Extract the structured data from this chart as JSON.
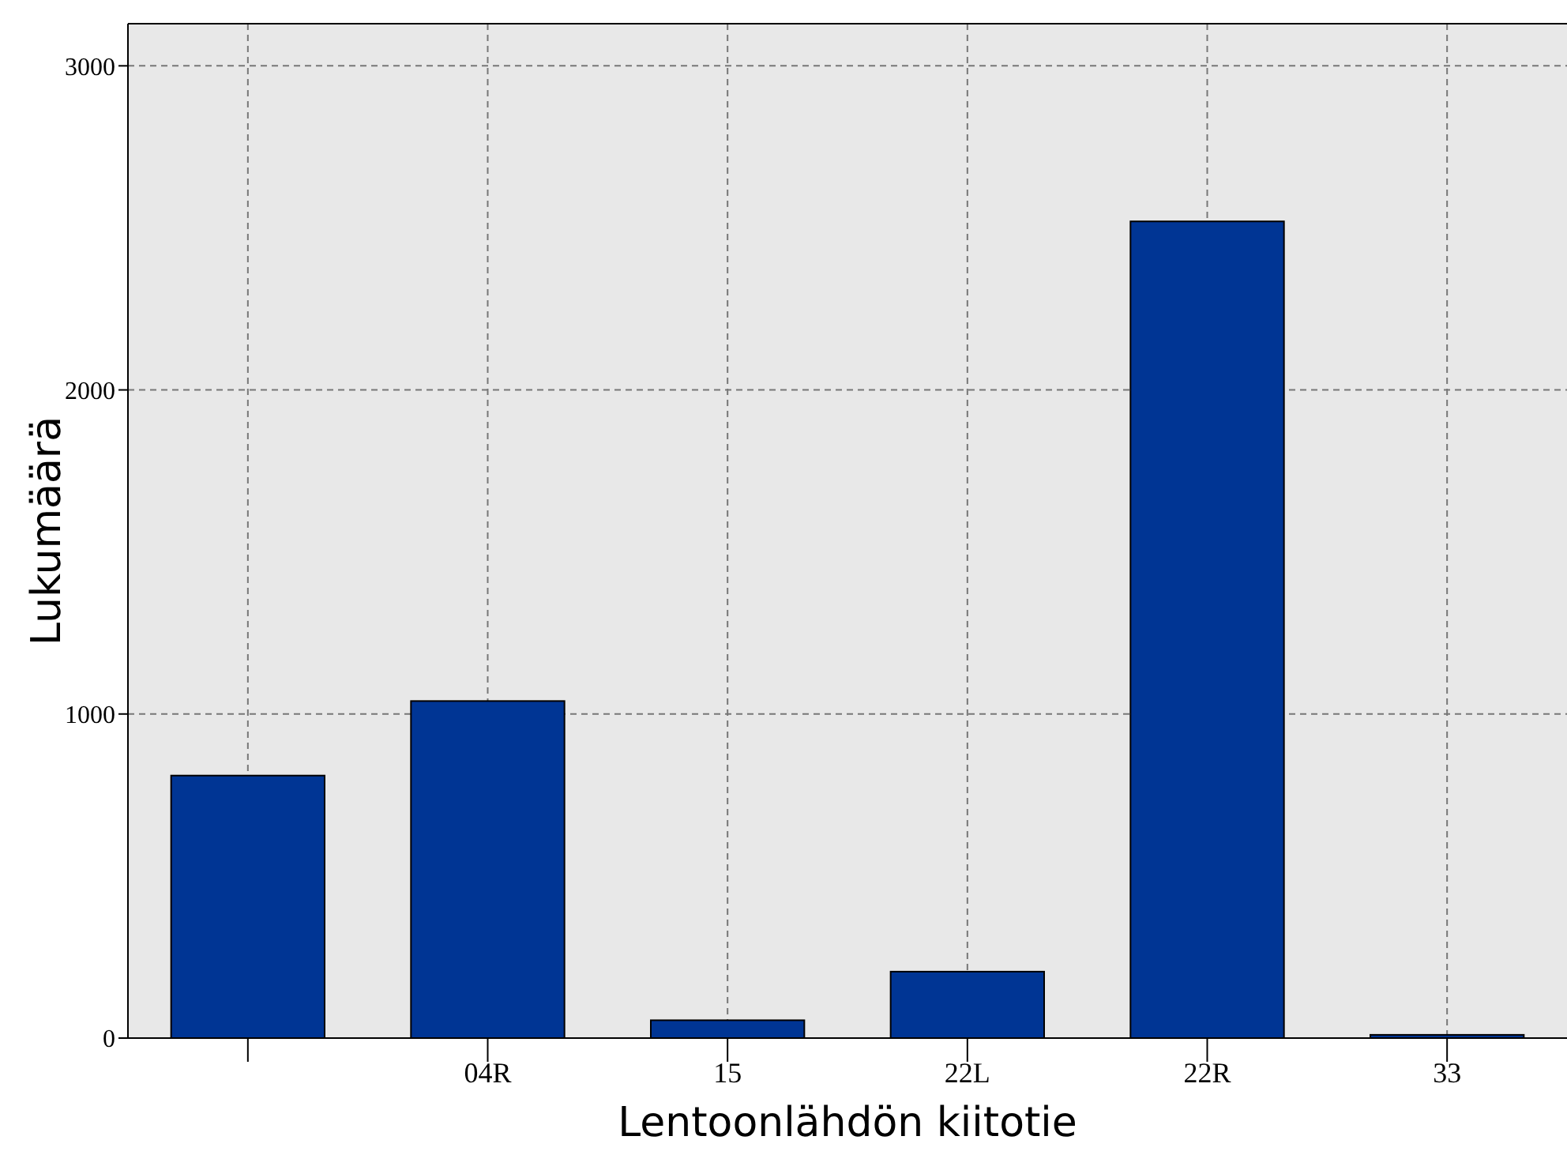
{
  "chart_data": {
    "type": "bar",
    "xlabel": "Lentoonlähdön kiitotie",
    "ylabel": "Lukumäärä",
    "categories": [
      null,
      "04R",
      "15",
      "22L",
      "22R",
      "33"
    ],
    "values": [
      810,
      1040,
      55,
      205,
      2520,
      10
    ],
    "color": "#003594",
    "ylim": [
      0,
      3130
    ],
    "yticks": [
      0,
      1000,
      2000,
      3000
    ],
    "grid": true
  }
}
